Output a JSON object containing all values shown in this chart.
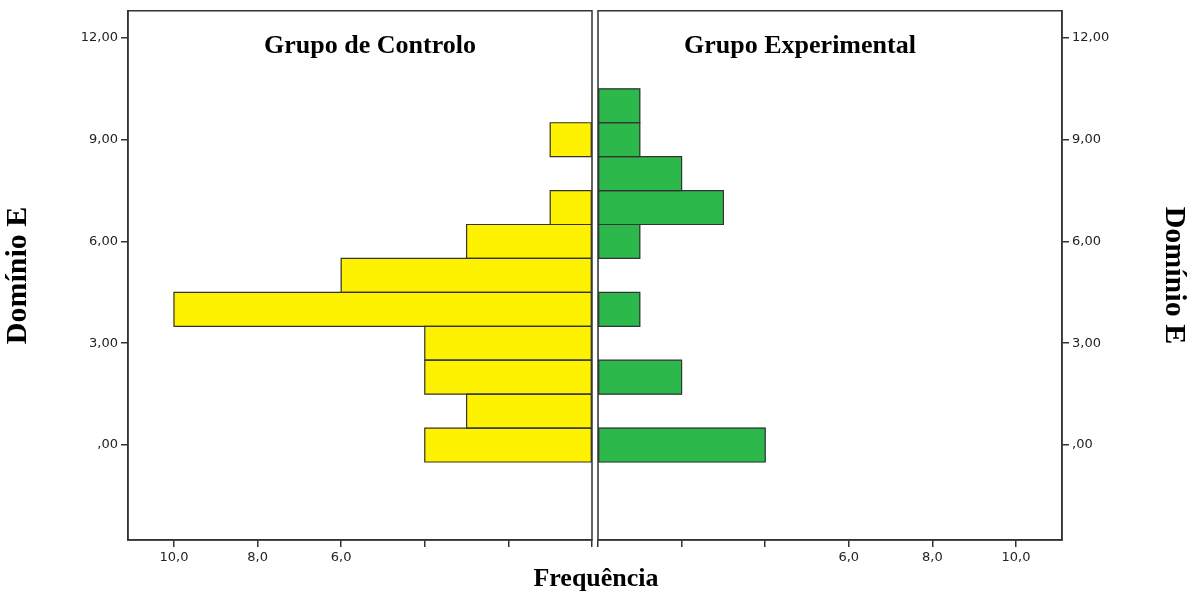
{
  "chart_data": [
    {
      "type": "histogram",
      "orientation": "horizontal",
      "title": "Grupo de Controlo",
      "ylabel": "Domínio E",
      "xlabel": "Frequência",
      "color": "#fff200",
      "bins": [
        -0.5,
        0.5,
        1.5,
        2.5,
        3.5,
        4.5,
        5.5,
        6.5,
        7.5,
        8.5,
        9.5,
        10.5
      ],
      "values": [
        4,
        3,
        4,
        4,
        10,
        6,
        3,
        1,
        0,
        1,
        0
      ],
      "xlim": [
        11.1,
        0
      ],
      "xticks": [
        {
          "value": 10,
          "label": "10,0"
        },
        {
          "value": 8,
          "label": "8,0"
        },
        {
          "value": 6,
          "label": "6,0"
        },
        {
          "value": 4,
          "label": null
        },
        {
          "value": 2,
          "label": null
        },
        {
          "value": 0,
          "label": null
        }
      ],
      "ylim": [
        -2.8,
        12.8
      ],
      "yticks": [
        {
          "value": 0,
          "label": ",00"
        },
        {
          "value": 3,
          "label": "3,00"
        },
        {
          "value": 6,
          "label": "6,00"
        },
        {
          "value": 9,
          "label": "9,00"
        },
        {
          "value": 12,
          "label": "12,00"
        }
      ]
    },
    {
      "type": "histogram",
      "orientation": "horizontal",
      "title": "Grupo Experimental",
      "ylabel": "Domínio E",
      "color": "#2db84b",
      "bins": [
        -0.5,
        0.5,
        1.5,
        2.5,
        3.5,
        4.5,
        5.5,
        6.5,
        7.5,
        8.5,
        9.5,
        10.5
      ],
      "values": [
        4,
        0,
        2,
        0,
        1,
        0,
        1,
        3,
        2,
        1,
        1
      ],
      "xlim": [
        0,
        11.1
      ],
      "xticks": [
        {
          "value": 0,
          "label": null
        },
        {
          "value": 2,
          "label": null
        },
        {
          "value": 4,
          "label": null
        },
        {
          "value": 6,
          "label": "6,0"
        },
        {
          "value": 8,
          "label": "8,0"
        },
        {
          "value": 10,
          "label": "10,0"
        }
      ],
      "ylim": [
        -2.8,
        12.8
      ],
      "yticks": [
        {
          "value": 0,
          "label": ",00"
        },
        {
          "value": 3,
          "label": "3,00"
        },
        {
          "value": 6,
          "label": "6,00"
        },
        {
          "value": 9,
          "label": "9,00"
        },
        {
          "value": 12,
          "label": "12,00"
        }
      ]
    }
  ]
}
